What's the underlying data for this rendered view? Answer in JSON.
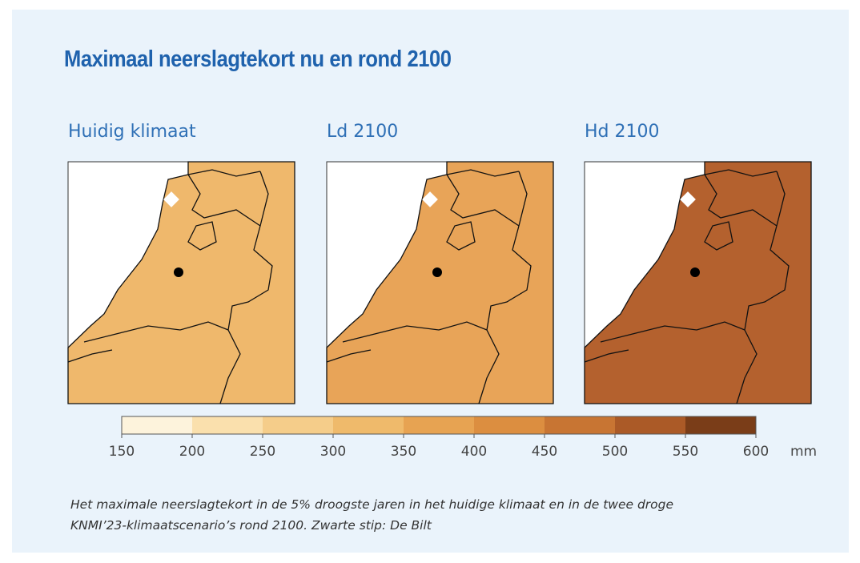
{
  "title": "Maximaal neerslagtekort nu en rond 2100",
  "maps": [
    {
      "title": "Huidig klimaat"
    },
    {
      "title": "Ld 2100"
    },
    {
      "title": "Hd 2100"
    }
  ],
  "colorbar": {
    "ticks": [
      150,
      200,
      250,
      300,
      350,
      400,
      450,
      500,
      550,
      600
    ],
    "unit": "mm",
    "colors": [
      "#fdf3dc",
      "#fae0ad",
      "#f5cd8a",
      "#efba6b",
      "#e7a352",
      "#dc8e40",
      "#c87533",
      "#ab5a27",
      "#7a3d18"
    ]
  },
  "caption": [
    "Het maximale neerslagtekort in de 5% droogste jaren in het huidige klimaat en in de twee droge",
    "KNMI’23-klimaatscenario’s rond 2100. Zwarte stip: De Bilt"
  ]
}
